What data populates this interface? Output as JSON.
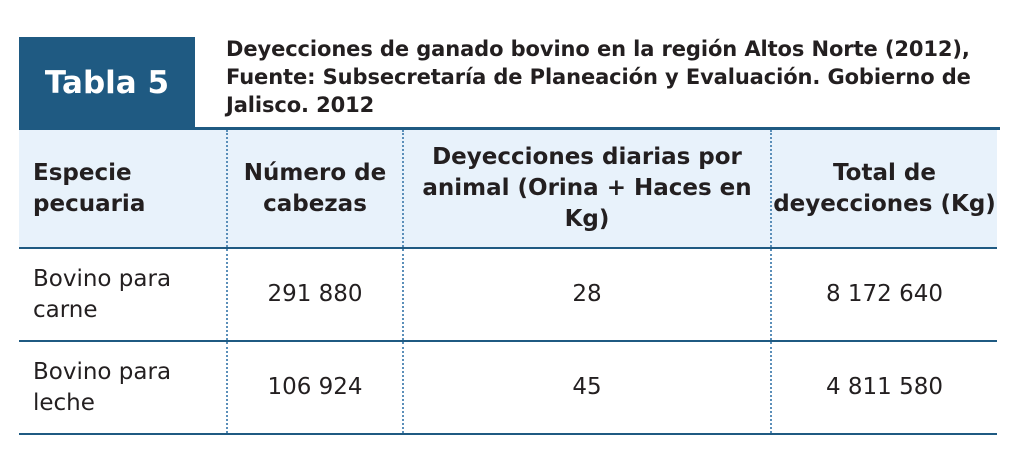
{
  "badge": {
    "label": "Tabla 5"
  },
  "caption": "Deyecciones de ganado bovino en la región Altos Norte (2012), Fuente: Subsecretaría de Planeación y Evaluación. Gobierno de Jalisco. 2012",
  "table": {
    "headers": [
      "Especie pecuaria",
      "Número de cabezas",
      "Deyecciones diarias por animal (Orina + Haces en Kg)",
      "Total de deyecciones (Kg)"
    ],
    "rows": [
      [
        "Bovino para carne",
        "291 880",
        "28",
        "8 172 640"
      ],
      [
        "Bovino para leche",
        "106 924",
        "45",
        "4 811 580"
      ]
    ]
  },
  "colors": {
    "accent": "#1f5a82",
    "header_bg": "#e8f2fb"
  }
}
